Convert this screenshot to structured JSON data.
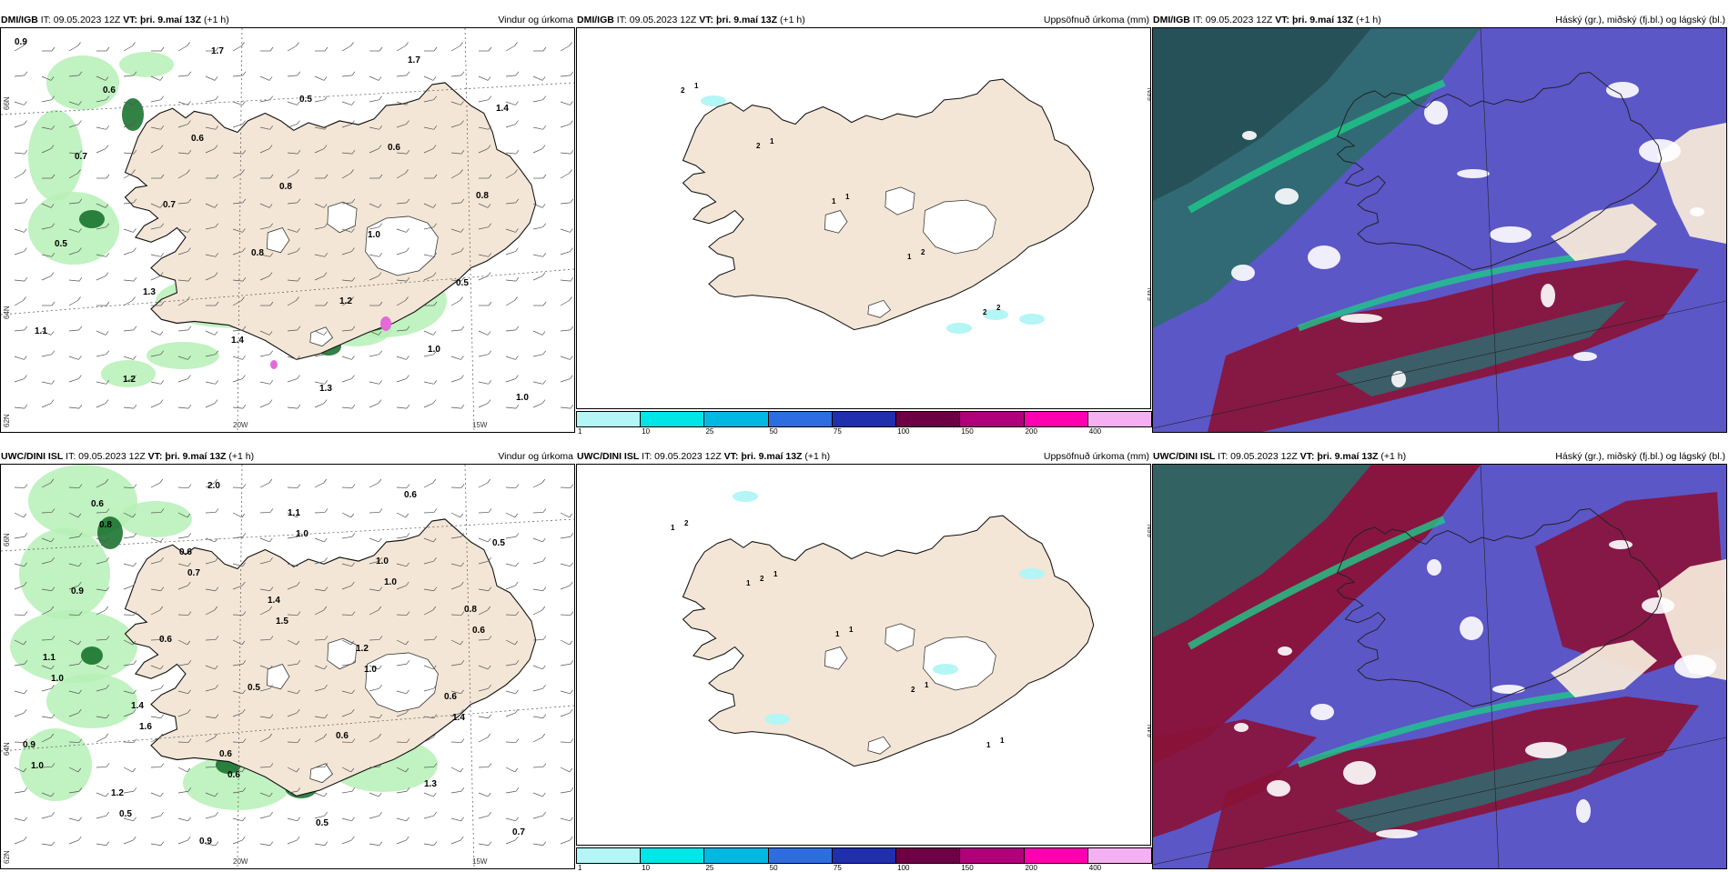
{
  "panels": [
    {
      "model": "DMI/IGB",
      "it": "IT: 09.05.2023 12Z",
      "vt_label": "VT:",
      "vt": "þri. 9.maí 13Z",
      "lead": "(+1 h)",
      "title": "Vindur og úrkoma"
    },
    {
      "model": "DMI/IGB",
      "it": "IT: 09.05.2023 12Z",
      "vt_label": "VT:",
      "vt": "þri. 9.maí 13Z",
      "lead": "(+1 h)",
      "title": "Uppsöfnuð úrkoma (mm)"
    },
    {
      "model": "DMI/IGB",
      "it": "IT: 09.05.2023 12Z",
      "vt_label": "VT:",
      "vt": "þri. 9.maí 13Z",
      "lead": "(+1 h)",
      "title": "Háský (gr.), miðský (fj.bl.) og lágský (bl.)"
    },
    {
      "model": "UWC/DINI ISL",
      "it": "IT: 09.05.2023 12Z",
      "vt_label": "VT:",
      "vt": "þri. 9.maí 13Z",
      "lead": "(+1 h)",
      "title": "Vindur og úrkoma"
    },
    {
      "model": "UWC/DINI ISL",
      "it": "IT: 09.05.2023 12Z",
      "vt_label": "VT:",
      "vt": "þri. 9.maí 13Z",
      "lead": "(+1 h)",
      "title": "Uppsöfnuð úrkoma (mm)"
    },
    {
      "model": "UWC/DINI ISL",
      "it": "IT: 09.05.2023 12Z",
      "vt_label": "VT:",
      "vt": "þri. 9.maí 13Z",
      "lead": "(+1 h)",
      "title": "Háský (gr.), miðský (fj.bl.) og lágský (bl.)"
    }
  ],
  "axis": {
    "lat66": "66N",
    "lat64": "64N",
    "lat_bl": "62N",
    "lon20": "20W",
    "lon15": "15W"
  },
  "colorbar": {
    "ticks": [
      "1",
      "10",
      "25",
      "50",
      "75",
      "100",
      "150",
      "200",
      "400"
    ],
    "colors": [
      "#b4f5f5",
      "#00e5e5",
      "#00b9e3",
      "#2e6de0",
      "#1f2fae",
      "#6d0044",
      "#b0007a",
      "#ff00b0",
      "#f4b0f0"
    ]
  },
  "precip_labels_top": [
    "0.9",
    "0.6",
    "0.6",
    "0.8",
    "1.0",
    "0.5",
    "1.1",
    "1.2",
    "1.7",
    "0.5",
    "0.6",
    "0.8",
    "0.5",
    "1.3",
    "1.4",
    "1.3",
    "1.7",
    "1.4",
    "0.7",
    "0.7",
    "0.8",
    "1.2",
    "1.0",
    "1.0"
  ],
  "precip_labels_bot": [
    "0.8",
    "0.7",
    "1.5",
    "1.0",
    "1.4",
    "1.0",
    "0.5",
    "2.0",
    "1.0",
    "1.0",
    "0.6",
    "1.0",
    "1.6",
    "0.6",
    "0.5",
    "0.6",
    "0.5",
    "0.9",
    "0.6",
    "0.5",
    "0.6",
    "1.3",
    "0.7",
    "0.6",
    "0.6",
    "1.4",
    "1.2",
    "0.6",
    "0.9",
    "1.2",
    "0.9",
    "1.1",
    "1.0",
    "0.8",
    "1.1",
    "1.4",
    "0.6"
  ],
  "accum_labels_top": [
    "1",
    "1",
    "1",
    "2",
    "2",
    "2",
    "2",
    "1",
    "1",
    "2"
  ],
  "accum_labels_bot": [
    "1",
    "1",
    "1",
    "1",
    "2",
    "2",
    "1",
    "2",
    "1",
    "1",
    "1"
  ]
}
